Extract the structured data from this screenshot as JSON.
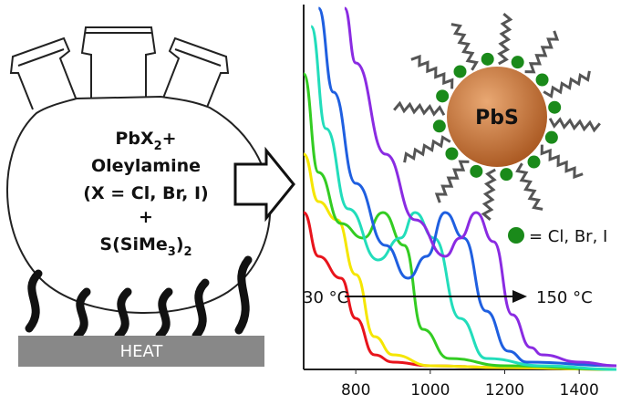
{
  "flask": {
    "line1": {
      "text": "PbX",
      "sub": "2",
      "tail": "+"
    },
    "line2": "Oleylamine",
    "line3": "(X = Cl, Br, I)",
    "line4": "+",
    "line5": {
      "text": "S(SiMe",
      "sub": "3",
      "tail": ")"
    },
    "line5_sub2": "2",
    "heat": "HEAT"
  },
  "particle": {
    "label": "PbS",
    "legend": "= Cl, Br, I"
  },
  "chart_data": {
    "type": "line",
    "xlim": [
      660,
      1500
    ],
    "ylim": [
      0,
      1
    ],
    "xticks": [
      800,
      1000,
      1200,
      1400
    ],
    "annotation_start": "30 °C",
    "annotation_end": "150 °C",
    "series": [
      {
        "color": "#e8141c",
        "x": [
          660,
          700,
          760,
          800,
          850,
          900,
          1000,
          1200,
          1500
        ],
        "values": [
          0.43,
          0.31,
          0.25,
          0.14,
          0.04,
          0.02,
          0.01,
          0.005,
          0.0
        ]
      },
      {
        "color": "#f5e600",
        "x": [
          660,
          700,
          750,
          800,
          850,
          900,
          1000,
          1200,
          1500
        ],
        "values": [
          0.59,
          0.46,
          0.41,
          0.26,
          0.09,
          0.04,
          0.01,
          0.005,
          0.0
        ]
      },
      {
        "color": "#33cc22",
        "x": [
          660,
          700,
          760,
          820,
          873,
          930,
          980,
          1050,
          1200,
          1500
        ],
        "values": [
          0.81,
          0.54,
          0.4,
          0.36,
          0.43,
          0.34,
          0.11,
          0.03,
          0.01,
          0.0
        ]
      },
      {
        "color": "#22ddbb",
        "x": [
          680,
          720,
          780,
          860,
          920,
          959,
          1010,
          1080,
          1150,
          1300,
          1500
        ],
        "values": [
          0.94,
          0.66,
          0.44,
          0.3,
          0.36,
          0.43,
          0.36,
          0.14,
          0.03,
          0.01,
          0.0
        ]
      },
      {
        "color": "#1f5fe0",
        "x": [
          700,
          740,
          800,
          880,
          940,
          990,
          1040,
          1090,
          1150,
          1210,
          1260,
          1500
        ],
        "values": [
          0.99,
          0.76,
          0.51,
          0.34,
          0.25,
          0.31,
          0.43,
          0.36,
          0.16,
          0.05,
          0.02,
          0.01
        ]
      },
      {
        "color": "#8a2be2",
        "x": [
          770,
          800,
          880,
          960,
          1040,
          1080,
          1123,
          1170,
          1220,
          1270,
          1300,
          1400,
          1500
        ],
        "values": [
          0.99,
          0.84,
          0.59,
          0.41,
          0.31,
          0.36,
          0.43,
          0.35,
          0.15,
          0.06,
          0.04,
          0.02,
          0.01
        ]
      }
    ]
  }
}
